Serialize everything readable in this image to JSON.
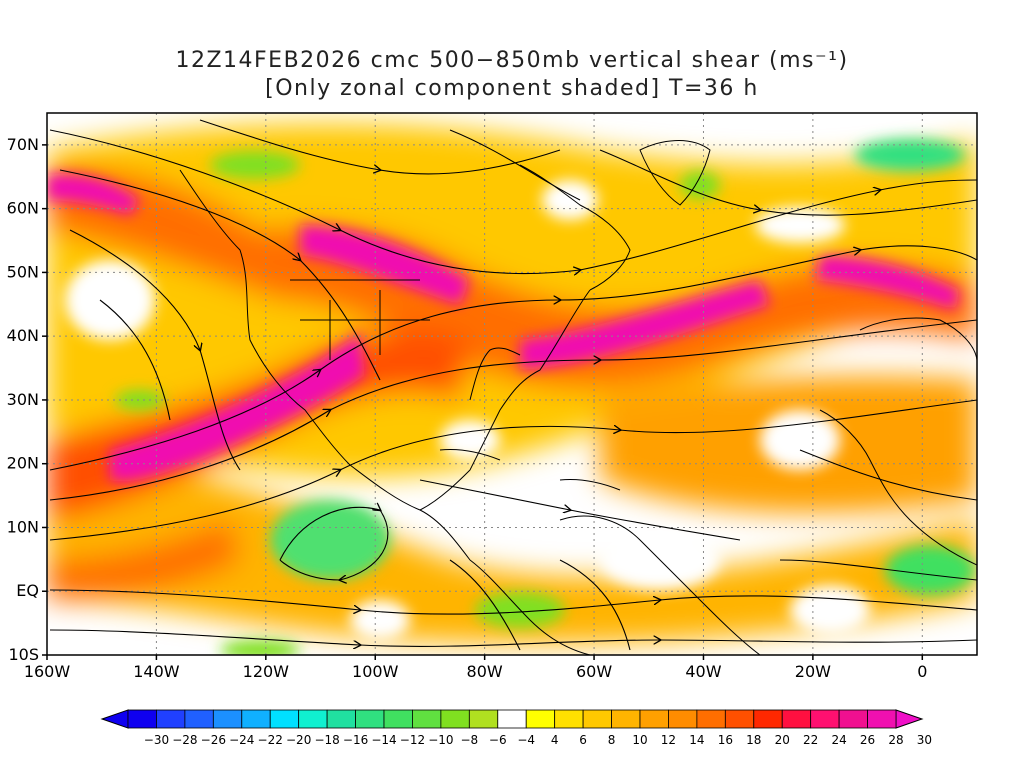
{
  "title": {
    "line1": "12Z14FEB2026 cmc 500−850mb vertical shear (ms⁻¹)",
    "line2": "[Only zonal component shaded] T=36 h"
  },
  "axes": {
    "lat_labels": [
      "70N",
      "60N",
      "50N",
      "40N",
      "30N",
      "20N",
      "10N",
      "EQ",
      "10S"
    ],
    "lat_values": [
      70,
      60,
      50,
      40,
      30,
      20,
      10,
      0,
      -10
    ],
    "lon_labels": [
      "160W",
      "140W",
      "120W",
      "100W",
      "80W",
      "60W",
      "40W",
      "20W",
      "0"
    ],
    "lon_values": [
      -160,
      -140,
      -120,
      -100,
      -80,
      -60,
      -40,
      -20,
      0
    ],
    "lon_range": [
      -160,
      10
    ],
    "lat_range": [
      -10,
      75
    ]
  },
  "colorbar": {
    "labels": [
      "-30",
      "-28",
      "-26",
      "-24",
      "-22",
      "-20",
      "-18",
      "-16",
      "-14",
      "-12",
      "-10",
      "-8",
      "-6",
      "-4",
      "4",
      "6",
      "8",
      "10",
      "12",
      "14",
      "16",
      "18",
      "20",
      "22",
      "24",
      "26",
      "28",
      "30"
    ],
    "colors": [
      "#0f00f0",
      "#2040ff",
      "#2060ff",
      "#1c90ff",
      "#10b0ff",
      "#00e0ff",
      "#10f0d0",
      "#20e0a0",
      "#30e080",
      "#40e060",
      "#60e040",
      "#80e020",
      "#b0e020",
      "#ffffff",
      "#ffff00",
      "#ffe000",
      "#ffc800",
      "#ffb400",
      "#ffa000",
      "#ff8c00",
      "#ff6e00",
      "#ff5000",
      "#ff2800",
      "#ff1040",
      "#ff1070",
      "#f01090",
      "#f010b0"
    ],
    "min_arrow_color": "#0f00f0",
    "max_arrow_color": "#f010c8"
  },
  "shading_colors": {
    "background": "#ffffff",
    "weak": "#ffff00",
    "moderate": "#ffb400",
    "strong": "#ff6e00",
    "jet": "#ff1070",
    "core": "#f010b0",
    "negative": "#80e020",
    "negative_strong": "#30e080"
  }
}
